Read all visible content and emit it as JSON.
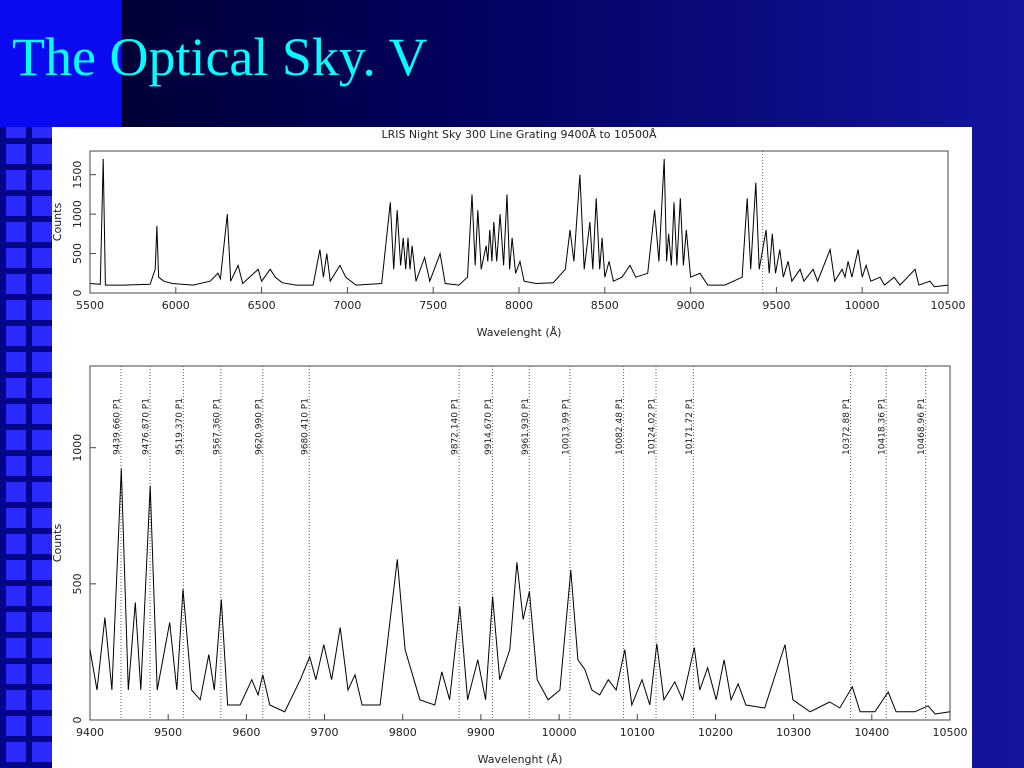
{
  "slide_title": "The Optical Sky. V",
  "chart_data": [
    {
      "type": "line",
      "title": "LRIS Night Sky 300 Line Grating 9400Å to 10500Å",
      "x_label": "Wavelenght (Å)",
      "y_label": "Counts",
      "color": "#000000",
      "xlim": [
        5500,
        10500
      ],
      "ylim": [
        0,
        1800
      ],
      "xticks": [
        5500,
        6000,
        6500,
        7000,
        7500,
        8000,
        8500,
        9000,
        9500,
        10000,
        10500
      ],
      "yticks": [
        0,
        500,
        1000,
        1500
      ],
      "vlines": [
        9420
      ],
      "x": [
        5500,
        5560,
        5577,
        5590,
        5700,
        5850,
        5880,
        5890,
        5900,
        5930,
        5980,
        6100,
        6200,
        6246,
        6260,
        6300,
        6320,
        6363,
        6390,
        6480,
        6500,
        6550,
        6580,
        6620,
        6700,
        6800,
        6840,
        6860,
        6880,
        6900,
        6957,
        6990,
        7050,
        7200,
        7250,
        7270,
        7290,
        7310,
        7325,
        7340,
        7353,
        7365,
        7377,
        7400,
        7450,
        7480,
        7540,
        7570,
        7650,
        7700,
        7726,
        7745,
        7760,
        7780,
        7808,
        7818,
        7830,
        7842,
        7853,
        7870,
        7890,
        7910,
        7930,
        7945,
        7960,
        7980,
        8006,
        8030,
        8100,
        8200,
        8270,
        8297,
        8320,
        8355,
        8380,
        8413,
        8430,
        8450,
        8470,
        8484,
        8500,
        8525,
        8550,
        8600,
        8647,
        8680,
        8750,
        8790,
        8815,
        8846,
        8860,
        8872,
        8888,
        8903,
        8920,
        8940,
        8958,
        8975,
        9000,
        9055,
        9100,
        9200,
        9300,
        9330,
        9350,
        9380,
        9400,
        9440,
        9458,
        9476,
        9495,
        9520,
        9540,
        9568,
        9590,
        9638,
        9660,
        9714,
        9740,
        9813,
        9840,
        9883,
        9900,
        9918,
        9940,
        9976,
        10000,
        10023,
        10050,
        10104,
        10130,
        10186,
        10220,
        10308,
        10330,
        10395,
        10420,
        10500
      ],
      "values": [
        120,
        110,
        1700,
        100,
        100,
        110,
        300,
        850,
        200,
        150,
        120,
        100,
        150,
        250,
        180,
        1000,
        150,
        350,
        120,
        300,
        150,
        300,
        200,
        130,
        100,
        100,
        550,
        200,
        500,
        150,
        350,
        200,
        100,
        120,
        1150,
        300,
        1050,
        350,
        700,
        300,
        700,
        300,
        600,
        150,
        450,
        150,
        500,
        120,
        100,
        200,
        1250,
        350,
        1050,
        300,
        600,
        400,
        800,
        400,
        900,
        400,
        1000,
        350,
        1250,
        300,
        700,
        250,
        400,
        150,
        120,
        130,
        300,
        800,
        400,
        1500,
        300,
        900,
        300,
        1200,
        300,
        700,
        200,
        400,
        150,
        200,
        350,
        200,
        250,
        1050,
        400,
        1700,
        400,
        750,
        350,
        1150,
        350,
        1200,
        350,
        800,
        200,
        250,
        100,
        100,
        200,
        1200,
        300,
        1400,
        300,
        800,
        250,
        750,
        250,
        550,
        200,
        400,
        150,
        300,
        150,
        300,
        150,
        550,
        150,
        300,
        200,
        400,
        200,
        550,
        200,
        350,
        150,
        200,
        100,
        200,
        100,
        300,
        100,
        150,
        80,
        100
      ]
    },
    {
      "type": "line",
      "x_label": "Wavelenght (Å)",
      "y_label": "Counts",
      "color": "#000000",
      "xlim": [
        9400,
        10500
      ],
      "ylim": [
        0,
        1300
      ],
      "xticks": [
        9400,
        9500,
        9600,
        9700,
        9800,
        9900,
        10000,
        10100,
        10200,
        10300,
        10400,
        10500
      ],
      "yticks": [
        0,
        500,
        1000
      ],
      "annotations": [
        {
          "x": 9439.66,
          "label": "9439.660 P1"
        },
        {
          "x": 9476.87,
          "label": "9476.870 P1"
        },
        {
          "x": 9519.37,
          "label": "9519.370 P1"
        },
        {
          "x": 9567.36,
          "label": "9567.360 P1"
        },
        {
          "x": 9620.99,
          "label": "9620.990 P1"
        },
        {
          "x": 9680.41,
          "label": "9680.410 P1"
        },
        {
          "x": 9872.14,
          "label": "9872.140 P1"
        },
        {
          "x": 9914.67,
          "label": "9914.670 P1"
        },
        {
          "x": 9961.93,
          "label": "9961.930 P1"
        },
        {
          "x": 10013.99,
          "label": "10013.99 P1"
        },
        {
          "x": 10082.48,
          "label": "10082.48 P1"
        },
        {
          "x": 10124.02,
          "label": "10124.02 P1"
        },
        {
          "x": 10171.72,
          "label": "10171.72 P1"
        },
        {
          "x": 10372.88,
          "label": "10372.88 P1"
        },
        {
          "x": 10418.36,
          "label": "10418.36 P1"
        },
        {
          "x": 10468.96,
          "label": "10468.96 P1"
        }
      ],
      "x": [
        9400,
        9409,
        9419,
        9428,
        9440,
        9449,
        9458,
        9465,
        9477,
        9486,
        9502,
        9511,
        9519,
        9530,
        9541,
        9552,
        9559,
        9568,
        9576,
        9592,
        9607,
        9615,
        9621,
        9630,
        9649,
        9669,
        9681,
        9689,
        9699,
        9709,
        9720,
        9730,
        9739,
        9748,
        9771,
        9793,
        9803,
        9822,
        9841,
        9850,
        9860,
        9873,
        9883,
        9896,
        9906,
        9915,
        9924,
        9937,
        9946,
        9954,
        9962,
        9972,
        9986,
        10001,
        10015,
        10024,
        10033,
        10042,
        10052,
        10063,
        10073,
        10084,
        10093,
        10106,
        10116,
        10125,
        10134,
        10148,
        10158,
        10173,
        10180,
        10190,
        10201,
        10211,
        10220,
        10229,
        10239,
        10263,
        10289,
        10299,
        10321,
        10346,
        10359,
        10375,
        10385,
        10404,
        10421,
        10431,
        10455,
        10472,
        10481,
        10500
      ],
      "values": [
        258,
        110,
        376,
        110,
        922,
        110,
        432,
        110,
        860,
        110,
        358,
        110,
        480,
        110,
        74,
        240,
        110,
        443,
        55,
        55,
        148,
        92,
        166,
        55,
        30,
        148,
        232,
        148,
        277,
        148,
        340,
        110,
        166,
        55,
        55,
        590,
        258,
        74,
        55,
        177,
        74,
        417,
        74,
        221,
        74,
        454,
        148,
        258,
        579,
        369,
        472,
        148,
        74,
        110,
        550,
        221,
        185,
        110,
        92,
        148,
        110,
        258,
        55,
        148,
        55,
        280,
        74,
        140,
        74,
        266,
        110,
        192,
        74,
        221,
        74,
        133,
        55,
        44,
        277,
        74,
        30,
        66,
        44,
        122,
        30,
        30,
        103,
        30,
        30,
        52,
        22,
        30
      ]
    }
  ]
}
